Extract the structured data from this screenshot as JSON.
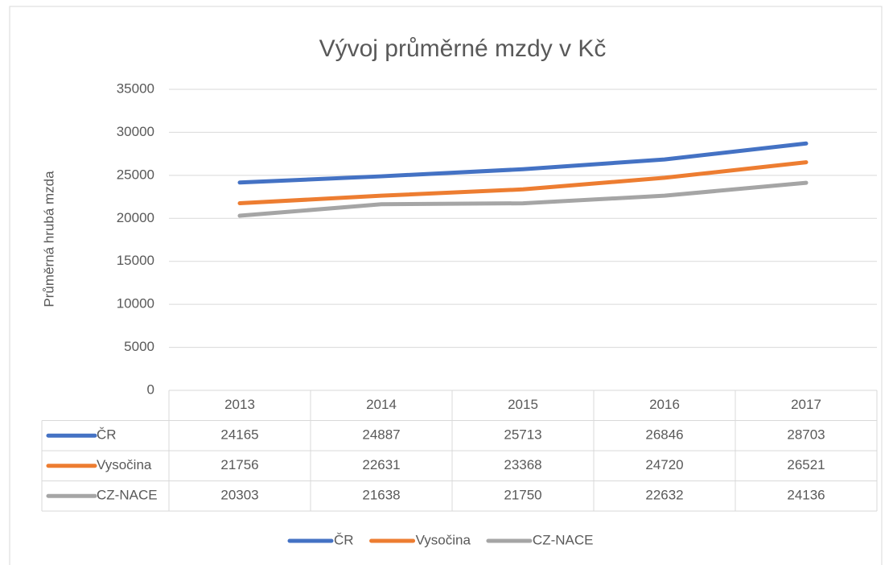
{
  "chart_data": {
    "type": "line",
    "title": "Vývoj průměrné mzdy v Kč",
    "y_label": "Průměrná hrubá mzda",
    "categories": [
      "2013",
      "2014",
      "2015",
      "2016",
      "2017"
    ],
    "series": [
      {
        "name": "ČR",
        "color": "#4472c4",
        "values": [
          24165,
          24887,
          25713,
          26846,
          28703
        ]
      },
      {
        "name": "Vysočina",
        "color": "#ed7d31",
        "values": [
          21756,
          22631,
          23368,
          24720,
          26521
        ]
      },
      {
        "name": "CZ-NACE",
        "color": "#a5a5a5",
        "values": [
          20303,
          21638,
          21750,
          22632,
          24136
        ]
      }
    ],
    "ylim": [
      0,
      35000
    ],
    "yticks": [
      0,
      5000,
      10000,
      15000,
      20000,
      25000,
      30000,
      35000
    ],
    "grid": true,
    "legend": "bottom"
  }
}
